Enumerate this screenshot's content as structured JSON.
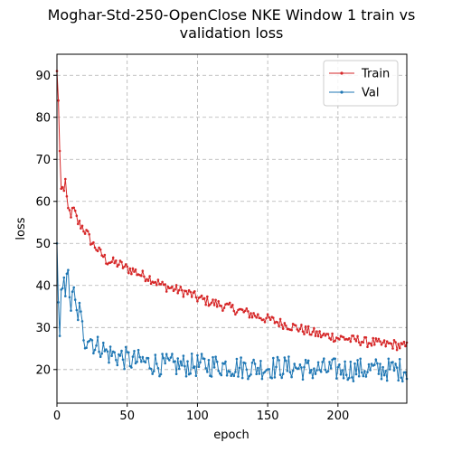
{
  "chart_data": {
    "type": "line",
    "title_line1": "Moghar-Std-250-OpenClose NKE Window 1 train vs",
    "title_line2": "validation loss",
    "xlabel": "epoch",
    "ylabel": "loss",
    "xlim": [
      0,
      249
    ],
    "ylim": [
      12,
      95
    ],
    "xticks": [
      0,
      50,
      100,
      150,
      200
    ],
    "yticks": [
      20,
      30,
      40,
      50,
      60,
      70,
      80,
      90
    ],
    "grid": true,
    "legend_position": "top-right",
    "series": [
      {
        "name": "Train",
        "color": "#d62728",
        "anchors": [
          [
            0,
            91
          ],
          [
            1,
            84
          ],
          [
            2,
            72
          ],
          [
            3,
            63
          ],
          [
            5,
            63
          ],
          [
            6,
            65
          ],
          [
            7,
            60
          ],
          [
            8,
            58
          ],
          [
            10,
            57
          ],
          [
            12,
            58
          ],
          [
            15,
            55
          ],
          [
            18,
            54
          ],
          [
            20,
            53
          ],
          [
            22,
            52
          ],
          [
            25,
            50
          ],
          [
            28,
            49
          ],
          [
            30,
            48
          ],
          [
            33,
            47
          ],
          [
            35,
            46
          ],
          [
            40,
            45.5
          ],
          [
            45,
            45
          ],
          [
            50,
            44
          ],
          [
            55,
            43.5
          ],
          [
            60,
            42.5
          ],
          [
            65,
            42
          ],
          [
            70,
            41
          ],
          [
            75,
            40
          ],
          [
            80,
            39.5
          ],
          [
            85,
            39
          ],
          [
            90,
            38.5
          ],
          [
            95,
            38
          ],
          [
            100,
            37
          ],
          [
            105,
            36.5
          ],
          [
            110,
            36
          ],
          [
            115,
            35.5
          ],
          [
            120,
            35
          ],
          [
            125,
            34.5
          ],
          [
            130,
            34
          ],
          [
            135,
            33.5
          ],
          [
            140,
            33
          ],
          [
            145,
            32.5
          ],
          [
            150,
            32
          ],
          [
            155,
            31.5
          ],
          [
            160,
            31
          ],
          [
            165,
            30.5
          ],
          [
            170,
            30
          ],
          [
            175,
            29.5
          ],
          [
            180,
            29
          ],
          [
            185,
            28.5
          ],
          [
            190,
            28
          ],
          [
            195,
            28
          ],
          [
            200,
            27.5
          ],
          [
            205,
            27.5
          ],
          [
            210,
            27
          ],
          [
            215,
            27
          ],
          [
            220,
            26.5
          ],
          [
            225,
            26.5
          ],
          [
            230,
            26
          ],
          [
            235,
            26
          ],
          [
            240,
            26
          ],
          [
            245,
            25.5
          ],
          [
            249,
            25.5
          ]
        ],
        "noise": 1.2
      },
      {
        "name": "Val",
        "color": "#1f77b4",
        "anchors": [
          [
            0,
            50
          ],
          [
            1,
            36
          ],
          [
            2,
            28
          ],
          [
            3,
            39
          ],
          [
            4,
            41
          ],
          [
            5,
            44
          ],
          [
            6,
            39
          ],
          [
            8,
            42
          ],
          [
            10,
            35
          ],
          [
            12,
            38
          ],
          [
            14,
            33
          ],
          [
            16,
            34
          ],
          [
            18,
            30
          ],
          [
            20,
            27
          ],
          [
            22,
            28
          ],
          [
            25,
            27
          ],
          [
            28,
            25
          ],
          [
            30,
            26
          ],
          [
            35,
            24
          ],
          [
            40,
            23.5
          ],
          [
            45,
            23
          ],
          [
            50,
            22.5
          ],
          [
            55,
            22
          ],
          [
            60,
            22
          ],
          [
            65,
            21.5
          ],
          [
            70,
            21.5
          ],
          [
            75,
            21
          ],
          [
            80,
            21
          ],
          [
            90,
            21
          ],
          [
            100,
            21
          ],
          [
            110,
            21
          ],
          [
            120,
            21
          ],
          [
            130,
            20.5
          ],
          [
            140,
            20.5
          ],
          [
            150,
            20.5
          ],
          [
            160,
            20.5
          ],
          [
            170,
            20.5
          ],
          [
            180,
            20
          ],
          [
            190,
            20
          ],
          [
            200,
            20
          ],
          [
            210,
            20
          ],
          [
            220,
            20
          ],
          [
            230,
            20
          ],
          [
            240,
            20
          ],
          [
            249,
            20
          ]
        ],
        "noise": 2.8
      }
    ]
  }
}
